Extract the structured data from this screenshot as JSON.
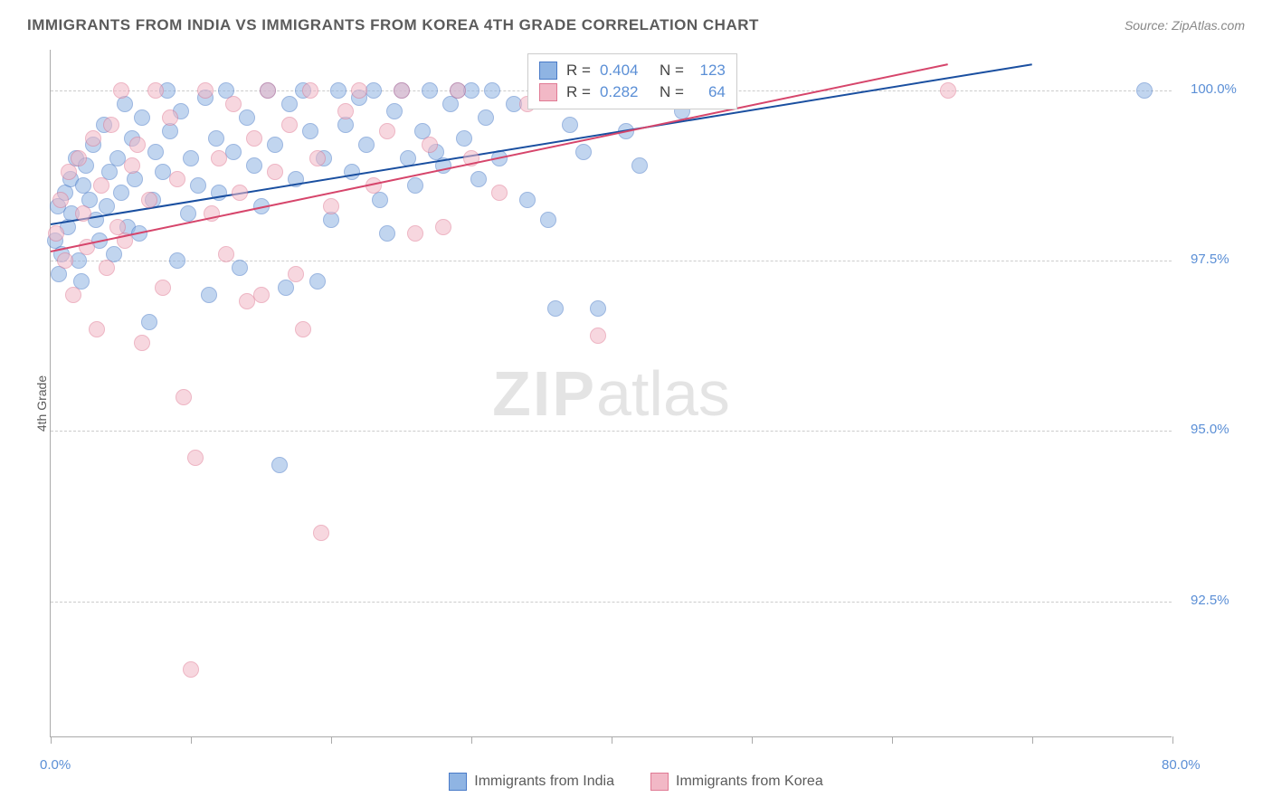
{
  "title": "IMMIGRANTS FROM INDIA VS IMMIGRANTS FROM KOREA 4TH GRADE CORRELATION CHART",
  "source": "Source: ZipAtlas.com",
  "ylabel": "4th Grade",
  "watermark_zip": "ZIP",
  "watermark_atlas": "atlas",
  "chart": {
    "type": "scatter",
    "xlim": [
      0,
      80
    ],
    "ylim": [
      90.5,
      100.6
    ],
    "x_ticks": [
      0,
      10,
      20,
      30,
      40,
      50,
      60,
      70,
      80
    ],
    "x_tick_labels": {
      "0": "0.0%",
      "80": "80.0%"
    },
    "y_ticks": [
      92.5,
      95.0,
      97.5,
      100.0
    ],
    "y_tick_labels": [
      "92.5%",
      "95.0%",
      "97.5%",
      "100.0%"
    ],
    "grid_color": "#cccccc",
    "background_color": "#ffffff",
    "axis_color": "#aaaaaa",
    "marker_radius": 9,
    "marker_opacity": 0.55,
    "series": [
      {
        "name": "Immigrants from India",
        "fill": "#8fb4e3",
        "stroke": "#4a7bc8",
        "line_color": "#1a4fa0",
        "R": "0.404",
        "N": "123",
        "trend": {
          "x1": 0,
          "y1": 98.05,
          "x2": 70,
          "y2": 100.4
        },
        "points": [
          [
            0.3,
            97.8
          ],
          [
            0.5,
            98.3
          ],
          [
            0.6,
            97.3
          ],
          [
            0.8,
            97.6
          ],
          [
            1.0,
            98.5
          ],
          [
            1.2,
            98.0
          ],
          [
            1.4,
            98.7
          ],
          [
            1.5,
            98.2
          ],
          [
            1.8,
            99.0
          ],
          [
            2.0,
            97.5
          ],
          [
            2.2,
            97.2
          ],
          [
            2.3,
            98.6
          ],
          [
            2.5,
            98.9
          ],
          [
            2.8,
            98.4
          ],
          [
            3.0,
            99.2
          ],
          [
            3.2,
            98.1
          ],
          [
            3.5,
            97.8
          ],
          [
            3.8,
            99.5
          ],
          [
            4.0,
            98.3
          ],
          [
            4.2,
            98.8
          ],
          [
            4.5,
            97.6
          ],
          [
            4.8,
            99.0
          ],
          [
            5.0,
            98.5
          ],
          [
            5.3,
            99.8
          ],
          [
            5.5,
            98.0
          ],
          [
            5.8,
            99.3
          ],
          [
            6.0,
            98.7
          ],
          [
            6.3,
            97.9
          ],
          [
            6.5,
            99.6
          ],
          [
            7.0,
            96.6
          ],
          [
            7.3,
            98.4
          ],
          [
            7.5,
            99.1
          ],
          [
            8.0,
            98.8
          ],
          [
            8.3,
            100.0
          ],
          [
            8.5,
            99.4
          ],
          [
            9.0,
            97.5
          ],
          [
            9.3,
            99.7
          ],
          [
            9.8,
            98.2
          ],
          [
            10.0,
            99.0
          ],
          [
            10.5,
            98.6
          ],
          [
            11.0,
            99.9
          ],
          [
            11.3,
            97.0
          ],
          [
            11.8,
            99.3
          ],
          [
            12.0,
            98.5
          ],
          [
            12.5,
            100.0
          ],
          [
            13.0,
            99.1
          ],
          [
            13.5,
            97.4
          ],
          [
            14.0,
            99.6
          ],
          [
            14.5,
            98.9
          ],
          [
            15.0,
            98.3
          ],
          [
            15.5,
            100.0
          ],
          [
            16.0,
            99.2
          ],
          [
            16.3,
            94.5
          ],
          [
            16.8,
            97.1
          ],
          [
            17.0,
            99.8
          ],
          [
            17.5,
            98.7
          ],
          [
            18.0,
            100.0
          ],
          [
            18.5,
            99.4
          ],
          [
            19.0,
            97.2
          ],
          [
            19.5,
            99.0
          ],
          [
            20.0,
            98.1
          ],
          [
            20.5,
            100.0
          ],
          [
            21.0,
            99.5
          ],
          [
            21.5,
            98.8
          ],
          [
            22.0,
            99.9
          ],
          [
            22.5,
            99.2
          ],
          [
            23.0,
            100.0
          ],
          [
            23.5,
            98.4
          ],
          [
            24.0,
            97.9
          ],
          [
            24.5,
            99.7
          ],
          [
            25.0,
            100.0
          ],
          [
            25.5,
            99.0
          ],
          [
            26.0,
            98.6
          ],
          [
            26.5,
            99.4
          ],
          [
            27.0,
            100.0
          ],
          [
            27.5,
            99.1
          ],
          [
            28.0,
            98.9
          ],
          [
            28.5,
            99.8
          ],
          [
            29.0,
            100.0
          ],
          [
            29.5,
            99.3
          ],
          [
            30.0,
            100.0
          ],
          [
            30.5,
            98.7
          ],
          [
            31.0,
            99.6
          ],
          [
            31.5,
            100.0
          ],
          [
            32.0,
            99.0
          ],
          [
            33.0,
            99.8
          ],
          [
            34.0,
            98.4
          ],
          [
            35.0,
            100.0
          ],
          [
            35.5,
            98.1
          ],
          [
            36.0,
            96.8
          ],
          [
            37.0,
            99.5
          ],
          [
            38.0,
            99.1
          ],
          [
            39.0,
            96.8
          ],
          [
            40.0,
            100.0
          ],
          [
            41.0,
            99.4
          ],
          [
            42.0,
            98.9
          ],
          [
            43.0,
            100.0
          ],
          [
            45.0,
            99.7
          ],
          [
            78.0,
            100.0
          ]
        ]
      },
      {
        "name": "Immigrants from Korea",
        "fill": "#f2b8c6",
        "stroke": "#e07a94",
        "line_color": "#d6456b",
        "R": "0.282",
        "N": "64",
        "trend": {
          "x1": 0,
          "y1": 97.65,
          "x2": 64,
          "y2": 100.4
        },
        "points": [
          [
            0.4,
            97.9
          ],
          [
            0.7,
            98.4
          ],
          [
            1.0,
            97.5
          ],
          [
            1.3,
            98.8
          ],
          [
            1.6,
            97.0
          ],
          [
            2.0,
            99.0
          ],
          [
            2.3,
            98.2
          ],
          [
            2.6,
            97.7
          ],
          [
            3.0,
            99.3
          ],
          [
            3.3,
            96.5
          ],
          [
            3.6,
            98.6
          ],
          [
            4.0,
            97.4
          ],
          [
            4.3,
            99.5
          ],
          [
            4.8,
            98.0
          ],
          [
            5.0,
            100.0
          ],
          [
            5.3,
            97.8
          ],
          [
            5.8,
            98.9
          ],
          [
            6.2,
            99.2
          ],
          [
            6.5,
            96.3
          ],
          [
            7.0,
            98.4
          ],
          [
            7.5,
            100.0
          ],
          [
            8.0,
            97.1
          ],
          [
            8.5,
            99.6
          ],
          [
            9.0,
            98.7
          ],
          [
            9.5,
            95.5
          ],
          [
            10.0,
            91.5
          ],
          [
            10.3,
            94.6
          ],
          [
            11.0,
            100.0
          ],
          [
            11.5,
            98.2
          ],
          [
            12.0,
            99.0
          ],
          [
            12.5,
            97.6
          ],
          [
            13.0,
            99.8
          ],
          [
            13.5,
            98.5
          ],
          [
            14.0,
            96.9
          ],
          [
            14.5,
            99.3
          ],
          [
            15.0,
            97.0
          ],
          [
            15.5,
            100.0
          ],
          [
            16.0,
            98.8
          ],
          [
            17.0,
            99.5
          ],
          [
            17.5,
            97.3
          ],
          [
            18.0,
            96.5
          ],
          [
            18.5,
            100.0
          ],
          [
            19.0,
            99.0
          ],
          [
            19.3,
            93.5
          ],
          [
            20.0,
            98.3
          ],
          [
            21.0,
            99.7
          ],
          [
            22.0,
            100.0
          ],
          [
            23.0,
            98.6
          ],
          [
            24.0,
            99.4
          ],
          [
            25.0,
            100.0
          ],
          [
            26.0,
            97.9
          ],
          [
            27.0,
            99.2
          ],
          [
            28.0,
            98.0
          ],
          [
            29.0,
            100.0
          ],
          [
            30.0,
            99.0
          ],
          [
            32.0,
            98.5
          ],
          [
            34.0,
            99.8
          ],
          [
            36.0,
            100.0
          ],
          [
            39.0,
            96.4
          ],
          [
            64.0,
            100.0
          ]
        ]
      }
    ]
  },
  "stats_labels": {
    "R": "R =",
    "N": "N ="
  },
  "legend_label_a": "Immigrants from India",
  "legend_label_b": "Immigrants from Korea"
}
